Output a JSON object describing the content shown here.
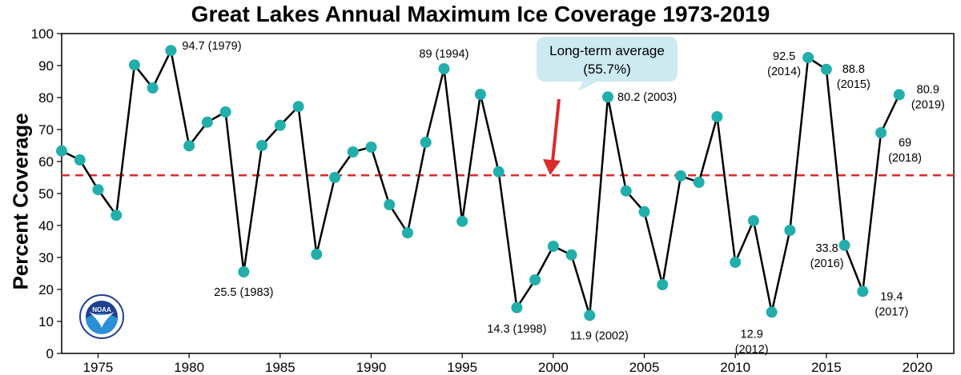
{
  "chart_data": {
    "type": "line",
    "title": "Great Lakes Annual Maximum Ice Coverage 1973-2019",
    "ylabel": "Percent Coverage",
    "xlabel": "",
    "xlim": [
      1973,
      2022
    ],
    "ylim": [
      0,
      100
    ],
    "xticks": [
      1975,
      1980,
      1985,
      1990,
      1995,
      2000,
      2005,
      2010,
      2015,
      2020
    ],
    "yticks": [
      0,
      10,
      20,
      30,
      40,
      50,
      60,
      70,
      80,
      90,
      100
    ],
    "grid": false,
    "line_color": "#000000",
    "marker_color": "#22aeab",
    "average_line_color": "#dd2a2a",
    "series": [
      {
        "x": [
          1973,
          1974,
          1975,
          1976,
          1977,
          1978,
          1979,
          1980,
          1981,
          1982,
          1983,
          1984,
          1985,
          1986,
          1987,
          1988,
          1989,
          1990,
          1991,
          1992,
          1993,
          1994,
          1995,
          1996,
          1997,
          1998,
          1999,
          2000,
          2001,
          2002,
          2003,
          2004,
          2005,
          2006,
          2007,
          2008,
          2009,
          2010,
          2011,
          2012,
          2013,
          2014,
          2015,
          2016,
          2017,
          2018,
          2019
        ],
        "y": [
          63.3,
          60.5,
          51.2,
          43.2,
          90.2,
          83.0,
          94.7,
          64.9,
          72.3,
          75.5,
          25.5,
          65.0,
          71.3,
          77.2,
          31.0,
          55.0,
          63.0,
          64.5,
          46.5,
          37.7,
          66.0,
          89.0,
          41.3,
          81.0,
          56.8,
          14.3,
          23.0,
          33.5,
          30.8,
          11.9,
          80.2,
          50.8,
          44.3,
          21.5,
          55.5,
          53.5,
          74.0,
          28.5,
          41.5,
          12.9,
          38.5,
          92.5,
          88.8,
          33.8,
          19.4,
          69.0,
          80.9
        ]
      }
    ],
    "long_term_average": 55.7,
    "callout_line1": "Long-term average",
    "callout_line2": "(55.7%)",
    "annotations": [
      {
        "year": 1979,
        "line1": "94.7 (1979)"
      },
      {
        "year": 1983,
        "line1": "25.5 (1983)"
      },
      {
        "year": 1994,
        "line1": "89 (1994)"
      },
      {
        "year": 1998,
        "line1": "14.3 (1998)"
      },
      {
        "year": 2002,
        "line1": "11.9 (2002)"
      },
      {
        "year": 2003,
        "line1": "80.2 (2003)"
      },
      {
        "year": 2012,
        "line1": "12.9",
        "line2": "(2012)"
      },
      {
        "year": 2014,
        "line1": "92.5",
        "line2": "(2014)"
      },
      {
        "year": 2015,
        "line1": "88.8",
        "line2": "(2015)"
      },
      {
        "year": 2016,
        "line1": "33.8",
        "line2": "(2016)"
      },
      {
        "year": 2017,
        "line1": "19.4",
        "line2": "(2017)"
      },
      {
        "year": 2018,
        "line1": "69",
        "line2": "(2018)"
      },
      {
        "year": 2019,
        "line1": "80.9",
        "line2": "(2019)"
      }
    ],
    "logo_text": "NOAA"
  }
}
